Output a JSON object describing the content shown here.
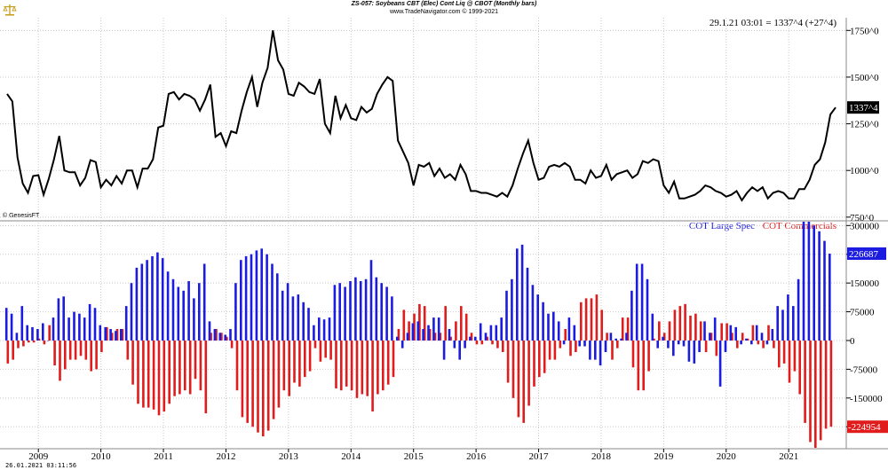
{
  "header": {
    "title": "ZS-057:  Soybeans CBT (Elec) Cont Liq @ CBOT  (Monthly bars)",
    "copyright": "www.TradeNavigator.com © 1999-2021",
    "quote": "29.1.21 03:01 = 1337^4 (+27^4)",
    "watermark": "© GenesisFT",
    "print_date": "26.01.2021 03:11:56"
  },
  "colors": {
    "price": "#000000",
    "large_spec": "#1c1ce0",
    "commercials": "#e01c1c",
    "grid": "#c8c8c8"
  },
  "chart_data": [
    {
      "type": "line",
      "title": "ZS-057:  Soybeans CBT (Elec) Cont Liq @ CBOT  (Monthly bars)",
      "y_ticks": [
        "1750^0",
        "1500^0",
        "1250^0",
        "1000^0",
        "750^0"
      ],
      "y_tick_values": [
        1750,
        1500,
        1250,
        1000,
        750
      ],
      "ylim": [
        735,
        1780
      ],
      "last_label": "1337^4",
      "x_labels": [
        "2009",
        "2010",
        "2011",
        "2012",
        "2013",
        "2014",
        "2015",
        "2016",
        "2017",
        "2018",
        "2019",
        "2020",
        "2021"
      ],
      "x_start": "2008-07",
      "series": [
        {
          "values": [
            1410,
            1370,
            1070,
            930,
            880,
            970,
            975,
            870,
            955,
            1060,
            1185,
            1000,
            990,
            990,
            920,
            960,
            1055,
            1045,
            910,
            950,
            920,
            970,
            930,
            1000,
            1000,
            910,
            1010,
            1010,
            1060,
            1230,
            1240,
            1410,
            1420,
            1380,
            1410,
            1400,
            1380,
            1320,
            1380,
            1460,
            1180,
            1200,
            1130,
            1210,
            1200,
            1320,
            1420,
            1500,
            1340,
            1470,
            1550,
            1750,
            1590,
            1540,
            1410,
            1400,
            1470,
            1450,
            1420,
            1410,
            1490,
            1250,
            1200,
            1400,
            1280,
            1350,
            1280,
            1270,
            1340,
            1310,
            1330,
            1410,
            1460,
            1500,
            1480,
            1160,
            1100,
            1040,
            920,
            1030,
            1020,
            1040,
            970,
            1010,
            960,
            980,
            950,
            1030,
            980,
            890,
            890,
            880,
            880,
            870,
            860,
            880,
            860,
            920,
            1010,
            1090,
            1160,
            1040,
            950,
            960,
            1020,
            1030,
            1020,
            1040,
            1020,
            950,
            950,
            930,
            1000,
            960,
            970,
            1030,
            950,
            980,
            990,
            1000,
            960,
            980,
            1050,
            1040,
            1060,
            1050,
            920,
            880,
            940,
            850,
            850,
            860,
            870,
            890,
            920,
            910,
            890,
            880,
            860,
            870,
            890,
            840,
            880,
            910,
            890,
            910,
            850,
            880,
            890,
            880,
            850,
            850,
            900,
            900,
            950,
            1030,
            1060,
            1150,
            1300,
            1337.4
          ]
        }
      ]
    },
    {
      "type": "bar",
      "legend": [
        "COT Large Spec",
        "COT Commercials"
      ],
      "y_ticks": [
        "300000",
        "225000",
        "150000",
        "75000",
        "0",
        "-75000",
        "-150000",
        "-225000"
      ],
      "y_tick_values": [
        300000,
        225000,
        150000,
        75000,
        0,
        -75000,
        -150000,
        -225000
      ],
      "ylim": [
        -280000,
        310000
      ],
      "last_labels": [
        "226687",
        "-224954"
      ],
      "series": [
        {
          "name": "COT Large Spec",
          "values": [
            85000,
            70000,
            20000,
            90000,
            40000,
            35000,
            30000,
            45000,
            0,
            60000,
            110000,
            115000,
            60000,
            75000,
            70000,
            60000,
            95000,
            85000,
            40000,
            35000,
            30000,
            25000,
            30000,
            90000,
            150000,
            190000,
            200000,
            210000,
            220000,
            230000,
            215000,
            180000,
            160000,
            140000,
            130000,
            155000,
            110000,
            150000,
            200000,
            50000,
            30000,
            20000,
            15000,
            30000,
            150000,
            210000,
            220000,
            225000,
            235000,
            240000,
            225000,
            200000,
            175000,
            130000,
            150000,
            115000,
            120000,
            100000,
            85000,
            40000,
            60000,
            55000,
            60000,
            145000,
            150000,
            140000,
            155000,
            165000,
            155000,
            160000,
            210000,
            165000,
            150000,
            140000,
            115000,
            10000,
            -20000,
            20000,
            45000,
            50000,
            30000,
            40000,
            60000,
            60000,
            -50000,
            30000,
            -20000,
            -50000,
            -20000,
            10000,
            10000,
            45000,
            20000,
            40000,
            40000,
            60000,
            130000,
            160000,
            240000,
            250000,
            190000,
            145000,
            120000,
            100000,
            70000,
            75000,
            50000,
            -10000,
            60000,
            40000,
            -15000,
            -15000,
            -50000,
            -50000,
            -65000,
            -30000,
            20000,
            5000,
            5000,
            20000,
            130000,
            200000,
            200000,
            160000,
            70000,
            -20000,
            10000,
            -20000,
            -40000,
            -10000,
            -15000,
            -55000,
            -60000,
            -30000,
            50000,
            20000,
            60000,
            -120000,
            -30000,
            40000,
            35000,
            -10000,
            5000,
            -10000,
            40000,
            20000,
            -10000,
            30000,
            90000,
            80000,
            120000,
            90000,
            160000,
            310000,
            310000,
            300000,
            285000,
            260000,
            226687
          ]
        },
        {
          "name": "COT Commercials",
          "values": [
            -60000,
            -50000,
            -20000,
            -15000,
            -5000,
            -5000,
            5000,
            -10000,
            40000,
            -65000,
            -105000,
            -75000,
            -50000,
            -50000,
            -40000,
            -50000,
            -80000,
            -75000,
            -30000,
            35000,
            20000,
            30000,
            30000,
            -50000,
            -115000,
            -165000,
            -175000,
            -175000,
            -180000,
            -195000,
            -185000,
            -165000,
            -145000,
            -140000,
            -130000,
            -140000,
            -100000,
            -130000,
            -190000,
            20000,
            30000,
            20000,
            10000,
            -20000,
            -130000,
            -200000,
            -215000,
            -225000,
            -240000,
            -250000,
            -235000,
            -205000,
            -175000,
            -130000,
            -145000,
            -110000,
            -120000,
            -95000,
            -80000,
            -20000,
            -55000,
            -45000,
            -50000,
            -125000,
            -130000,
            -120000,
            -130000,
            -150000,
            -140000,
            -145000,
            -185000,
            -140000,
            -130000,
            -115000,
            -95000,
            30000,
            80000,
            50000,
            70000,
            95000,
            90000,
            30000,
            20000,
            20000,
            90000,
            10000,
            50000,
            90000,
            70000,
            20000,
            -10000,
            -10000,
            10000,
            -10000,
            -20000,
            -30000,
            -110000,
            -150000,
            -200000,
            -215000,
            -170000,
            -120000,
            -95000,
            -85000,
            -50000,
            -50000,
            -20000,
            30000,
            -40000,
            -30000,
            100000,
            110000,
            110000,
            120000,
            80000,
            20000,
            -50000,
            -20000,
            60000,
            60000,
            -70000,
            -130000,
            -130000,
            -80000,
            5000,
            50000,
            20000,
            50000,
            80000,
            90000,
            95000,
            65000,
            70000,
            50000,
            -30000,
            20000,
            -40000,
            45000,
            45000,
            20000,
            -20000,
            20000,
            5000,
            40000,
            -10000,
            -20000,
            40000,
            -20000,
            -70000,
            -60000,
            -110000,
            -80000,
            -140000,
            -215000,
            -265000,
            -280000,
            -260000,
            -230000,
            -224954
          ]
        }
      ]
    }
  ]
}
